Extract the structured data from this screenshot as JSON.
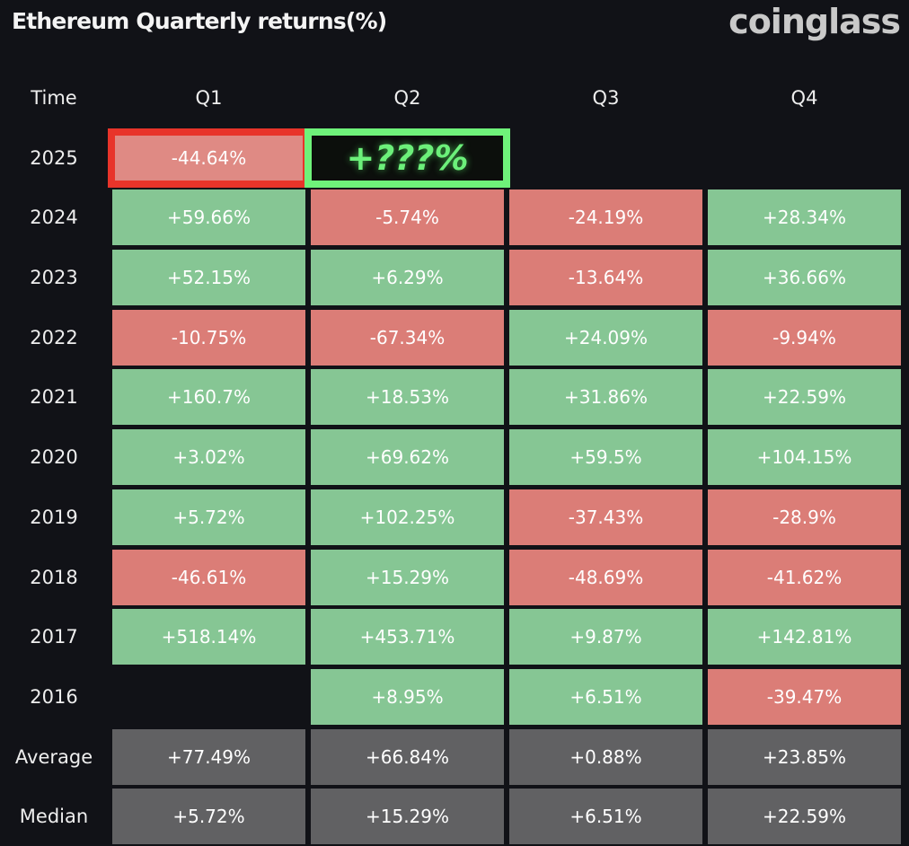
{
  "chart_data": {
    "type": "table",
    "title": "Ethereum Quarterly returns(%)",
    "brand": "coinglass",
    "columns": [
      "Time",
      "Q1",
      "Q2",
      "Q3",
      "Q4"
    ],
    "rows": [
      {
        "time": "2025",
        "values": [
          "-44.64%",
          "+???%",
          "",
          ""
        ],
        "highlight": [
          "red",
          "green",
          null,
          null
        ]
      },
      {
        "time": "2024",
        "values": [
          "+59.66%",
          "-5.74%",
          "-24.19%",
          "+28.34%"
        ]
      },
      {
        "time": "2023",
        "values": [
          "+52.15%",
          "+6.29%",
          "-13.64%",
          "+36.66%"
        ]
      },
      {
        "time": "2022",
        "values": [
          "-10.75%",
          "-67.34%",
          "+24.09%",
          "-9.94%"
        ]
      },
      {
        "time": "2021",
        "values": [
          "+160.7%",
          "+18.53%",
          "+31.86%",
          "+22.59%"
        ]
      },
      {
        "time": "2020",
        "values": [
          "+3.02%",
          "+69.62%",
          "+59.5%",
          "+104.15%"
        ]
      },
      {
        "time": "2019",
        "values": [
          "+5.72%",
          "+102.25%",
          "-37.43%",
          "-28.9%"
        ]
      },
      {
        "time": "2018",
        "values": [
          "-46.61%",
          "+15.29%",
          "-48.69%",
          "-41.62%"
        ]
      },
      {
        "time": "2017",
        "values": [
          "+518.14%",
          "+453.71%",
          "+9.87%",
          "+142.81%"
        ]
      },
      {
        "time": "2016",
        "values": [
          "",
          "+8.95%",
          "+6.51%",
          "-39.47%"
        ]
      }
    ],
    "stats": [
      {
        "time": "Average",
        "values": [
          "+77.49%",
          "+66.84%",
          "+0.88%",
          "+23.85%"
        ]
      },
      {
        "time": "Median",
        "values": [
          "+5.72%",
          "+15.29%",
          "+6.51%",
          "+22.59%"
        ]
      }
    ],
    "colors": {
      "positive": "#86c694",
      "negative": "#db7d77",
      "stat": "#616163",
      "highlight_red": "#e8342a",
      "highlight_green": "#6ff27a"
    }
  }
}
